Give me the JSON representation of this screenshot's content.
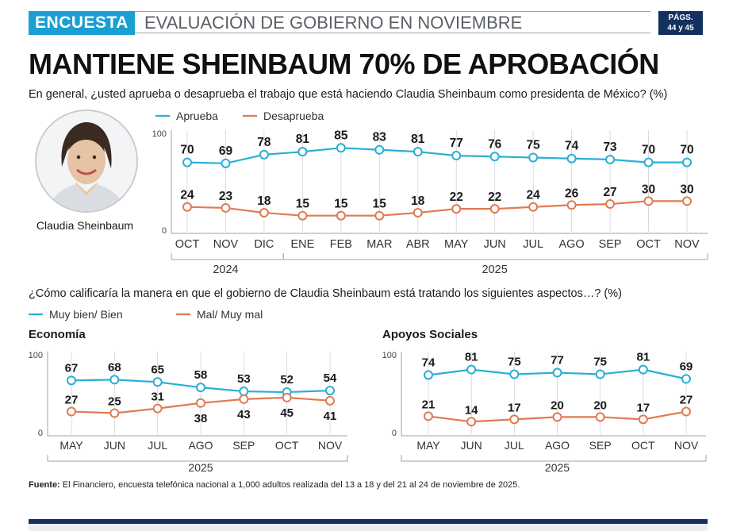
{
  "header": {
    "tag": "ENCUESTA",
    "title": "EVALUACIÓN DE GOBIERNO EN NOVIEMBRE",
    "pages_label": "PÁGS.",
    "pages_value": "44 y 45"
  },
  "headline": "MANTIENE SHEINBAUM 70% DE APROBACIÓN",
  "question1": "En general, ¿usted aprueba o desaprueba el trabajo que está haciendo Claudia Sheinbaum como presidenta de México? (%)",
  "portrait_name": "Claudia Sheinbaum",
  "question2": "¿Cómo calificaría la manera en que el gobierno de Claudia Sheinbaum está tratando los siguientes aspectos…? (%)",
  "footer": {
    "label": "Fuente:",
    "text": "El Financiero, encuesta telefónica nacional a 1,000 adultos realizada del 13 a 18 y del 21 al 24 de noviembre de 2025."
  },
  "colors": {
    "blue": "#2aaed6",
    "orange": "#e07a52",
    "navy": "#14305f"
  },
  "chart_data": [
    {
      "type": "line",
      "title": "",
      "categories": [
        "OCT",
        "NOV",
        "DIC",
        "ENE",
        "FEB",
        "MAR",
        "ABR",
        "MAY",
        "JUN",
        "JUL",
        "AGO",
        "SEP",
        "OCT",
        "NOV"
      ],
      "year_groups": [
        {
          "label": "2024",
          "from": 0,
          "to": 2
        },
        {
          "label": "2025",
          "from": 3,
          "to": 13
        }
      ],
      "series": [
        {
          "name": "Aprueba",
          "color": "#2aaed6",
          "values": [
            70,
            69,
            78,
            81,
            85,
            83,
            81,
            77,
            76,
            75,
            74,
            73,
            70,
            70
          ]
        },
        {
          "name": "Desaprueba",
          "color": "#e07a52",
          "values": [
            24,
            23,
            18,
            15,
            15,
            15,
            18,
            22,
            22,
            24,
            26,
            27,
            30,
            30
          ]
        }
      ],
      "ylim": [
        0,
        100
      ],
      "ytick_labels": [
        "100",
        "0"
      ],
      "legend_placement": "top-left"
    },
    {
      "type": "line",
      "title": "Economía",
      "categories": [
        "MAY",
        "JUN",
        "JUL",
        "AGO",
        "SEP",
        "OCT",
        "NOV"
      ],
      "year_groups": [
        {
          "label": "2025",
          "from": 0,
          "to": 6
        }
      ],
      "series": [
        {
          "name": "Muy bien/ Bien",
          "color": "#2aaed6",
          "values": [
            67,
            68,
            65,
            58,
            53,
            52,
            54
          ]
        },
        {
          "name": "Mal/ Muy mal",
          "color": "#e07a52",
          "values": [
            27,
            25,
            31,
            38,
            43,
            45,
            41
          ]
        }
      ],
      "ylim": [
        0,
        100
      ],
      "ytick_labels": [
        "100",
        "0"
      ],
      "legend_placement": "top-left"
    },
    {
      "type": "line",
      "title": "Apoyos Sociales",
      "categories": [
        "MAY",
        "JUN",
        "JUL",
        "AGO",
        "SEP",
        "OCT",
        "NOV"
      ],
      "year_groups": [
        {
          "label": "2025",
          "from": 0,
          "to": 6
        }
      ],
      "series": [
        {
          "name": "Muy bien/ Bien",
          "color": "#2aaed6",
          "values": [
            74,
            81,
            75,
            77,
            75,
            81,
            69
          ]
        },
        {
          "name": "Mal/ Muy mal",
          "color": "#e07a52",
          "values": [
            21,
            14,
            17,
            20,
            20,
            17,
            27
          ]
        }
      ],
      "ylim": [
        0,
        100
      ],
      "ytick_labels": [
        "100",
        "0"
      ]
    }
  ]
}
